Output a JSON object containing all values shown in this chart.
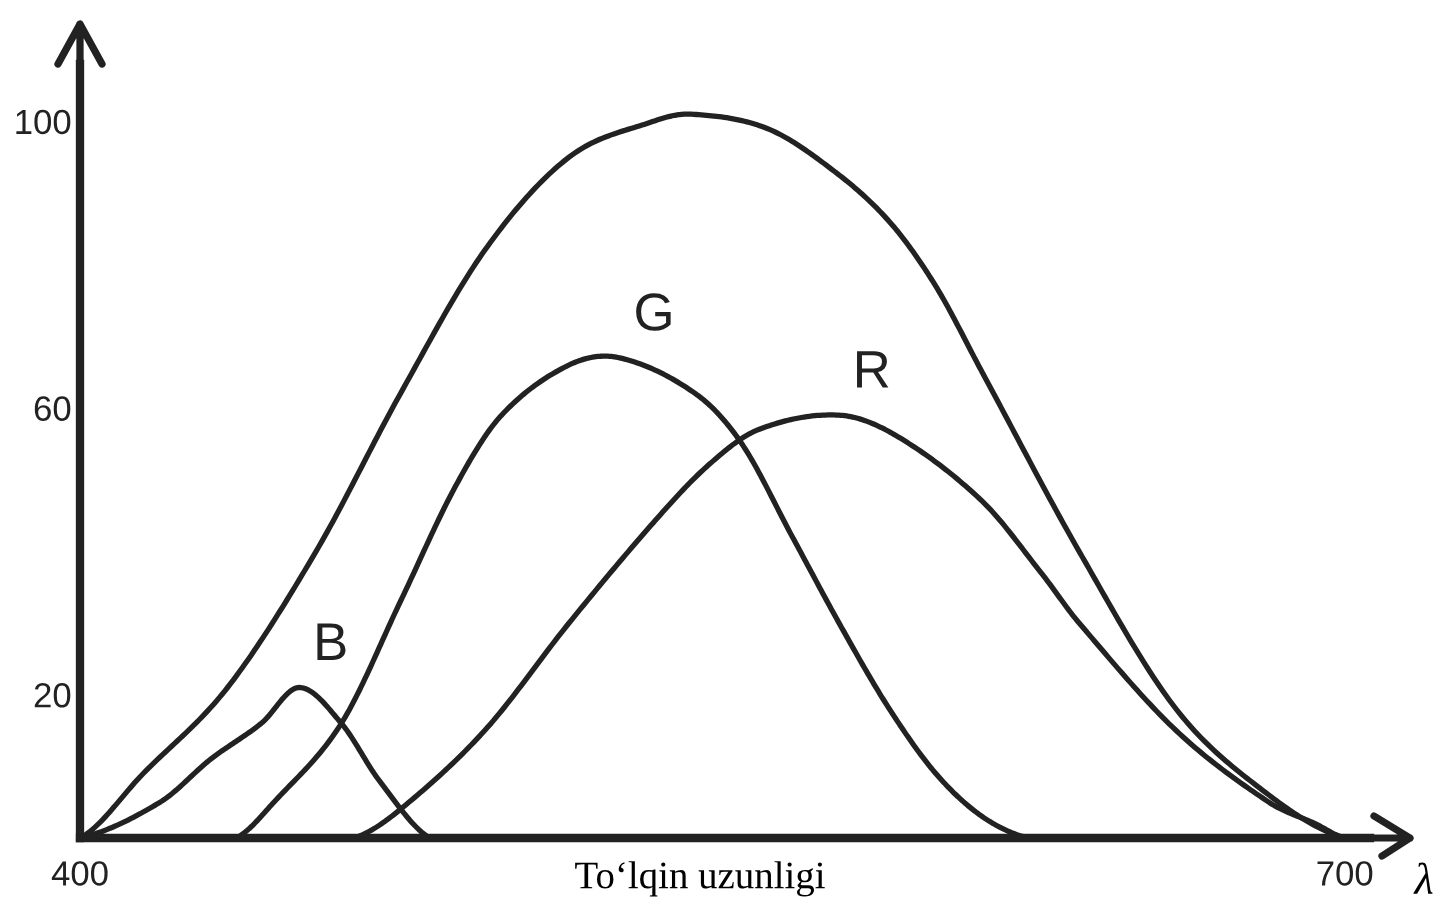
{
  "chart_data": {
    "type": "line",
    "xlabel": "To‘lqin uzunligi",
    "annotations": [
      "λ"
    ],
    "xlim": [
      400,
      706
    ],
    "ylim": [
      0,
      108
    ],
    "xticks": [
      400,
      700
    ],
    "yticks": [
      20,
      60,
      100
    ],
    "marker": "none",
    "line_style": "solid",
    "series": [
      {
        "color": "#222222",
        "x": [
          400,
          415,
          435,
          456,
          476,
          496,
          516,
          536,
          545,
          563,
          579,
          592,
          603,
          614,
          637,
          660,
          682,
          700
        ],
        "values": [
          0,
          9,
          21,
          40,
          62,
          82,
          95,
          100,
          101,
          99,
          93,
          86,
          77,
          65,
          40,
          18,
          6,
          0
        ]
      },
      {
        "name": "B",
        "color": "#222222",
        "x": [
          400,
          419,
          431,
          443,
          452,
          462,
          471,
          483
        ],
        "values": [
          0,
          5,
          11,
          16,
          21,
          16,
          8,
          0
        ]
      },
      {
        "name": "G",
        "color": "#222222",
        "x": [
          437,
          446,
          462,
          476,
          489,
          500,
          516,
          528,
          546,
          557,
          569,
          581,
          592,
          603,
          614,
          625
        ],
        "values": [
          0,
          5,
          16,
          33,
          49,
          59,
          66,
          67,
          62,
          55,
          42,
          29,
          18,
          9,
          3,
          0
        ]
      },
      {
        "name": "R",
        "color": "#222222",
        "x": [
          465,
          476,
          496,
          516,
          536,
          549,
          561,
          580,
          594,
          614,
          628,
          637,
          660,
          682,
          693,
          700
        ],
        "values": [
          0,
          4,
          15,
          30,
          44,
          52,
          57,
          59,
          56,
          47,
          37,
          30,
          15,
          5,
          2,
          0
        ]
      }
    ]
  }
}
